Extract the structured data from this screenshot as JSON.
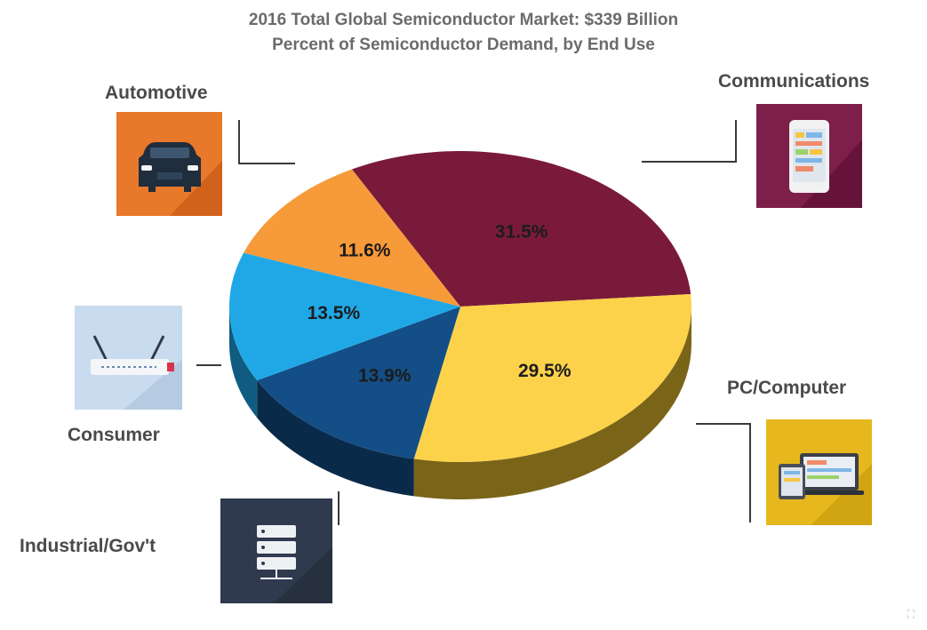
{
  "chart_data": {
    "type": "pie",
    "title": "2016 Total Global Semiconductor Market: $339 Billion",
    "subtitle": "Percent of Semiconductor Demand, by End Use",
    "slices": [
      {
        "label": "Communications",
        "value": 31.5,
        "value_label": "31.5%",
        "color": "#7a1a3a",
        "side_color": "#4a0f24"
      },
      {
        "label": "PC/Computer",
        "value": 29.5,
        "value_label": "29.5%",
        "color": "#fbd24a",
        "side_color": "#7a6418"
      },
      {
        "label": "Industrial/Gov't",
        "value": 13.9,
        "value_label": "13.9%",
        "color": "#134e86",
        "side_color": "#0a2a4a"
      },
      {
        "label": "Consumer",
        "value": 13.5,
        "value_label": "13.5%",
        "color": "#20a8e6",
        "side_color": "#0f5c80"
      },
      {
        "label": "Automotive",
        "value": 11.6,
        "value_label": "11.6%",
        "color": "#f79a3a",
        "side_color": "#8a531c"
      }
    ],
    "legend": "none"
  },
  "labels": {
    "automotive": "Automotive",
    "communications": "Communications",
    "consumer": "Consumer",
    "pc_computer": "PC/Computer",
    "industrial_govt": "Industrial/Gov't"
  },
  "icons": {
    "automotive": {
      "name": "car-icon",
      "color": "#e8782a"
    },
    "communications": {
      "name": "smartphone-icon",
      "color": "#7e1e4a"
    },
    "consumer": {
      "name": "wifi-router-icon",
      "color": "#c9dcef"
    },
    "pc_computer": {
      "name": "laptop-tablet-icon",
      "color": "#e6b81e"
    },
    "industrial_govt": {
      "name": "server-icon",
      "color": "#2f3a4f"
    }
  },
  "corner_mark": "⛶"
}
